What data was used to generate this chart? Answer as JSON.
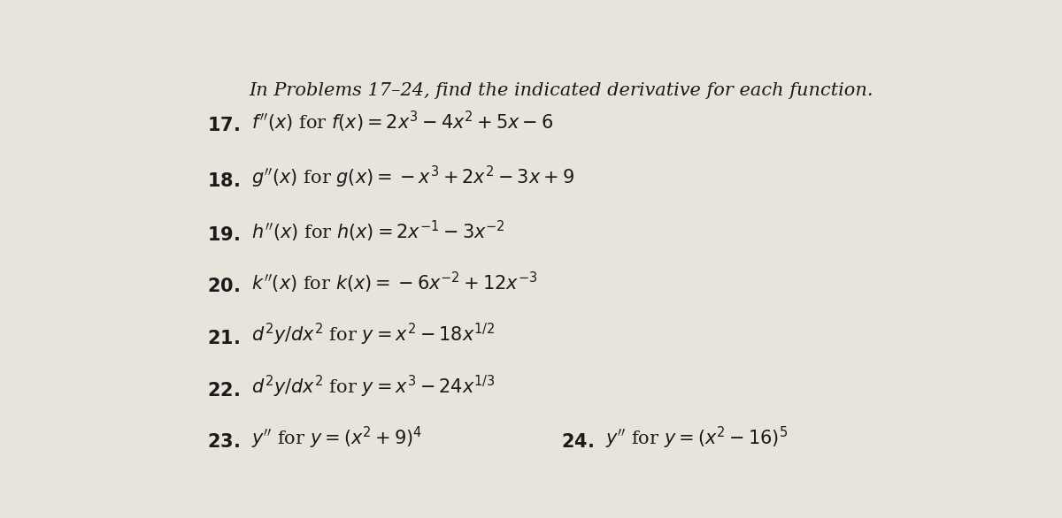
{
  "bg_color": "#e8e4dc",
  "text_color": "#1a1a1a",
  "title_fontsize": 15,
  "problem_fontsize": 15
}
